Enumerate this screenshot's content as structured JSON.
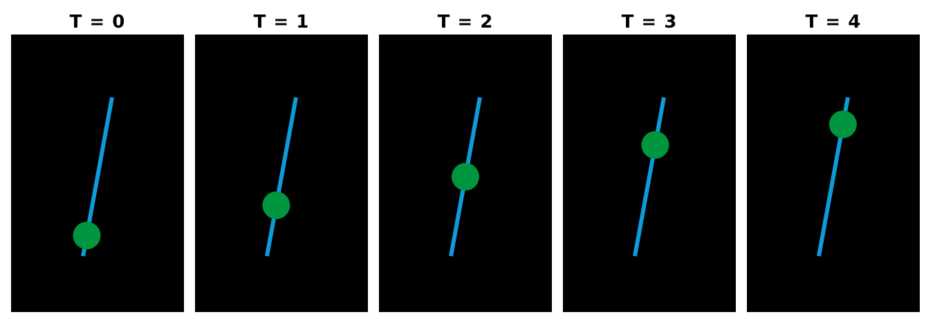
{
  "colors": {
    "panel_background": "#000000",
    "rod": "#0f9ad9",
    "bead": "#00953f",
    "title_text": "#000000",
    "page_background": "#ffffff"
  },
  "frames": [
    {
      "title": "T = 0",
      "bead_position_along_rod": 0.13
    },
    {
      "title": "T = 1",
      "bead_position_along_rod": 0.32
    },
    {
      "title": "T = 2",
      "bead_position_along_rod": 0.5
    },
    {
      "title": "T = 3",
      "bead_position_along_rod": 0.7
    },
    {
      "title": "T = 4",
      "bead_position_along_rod": 0.83
    }
  ]
}
